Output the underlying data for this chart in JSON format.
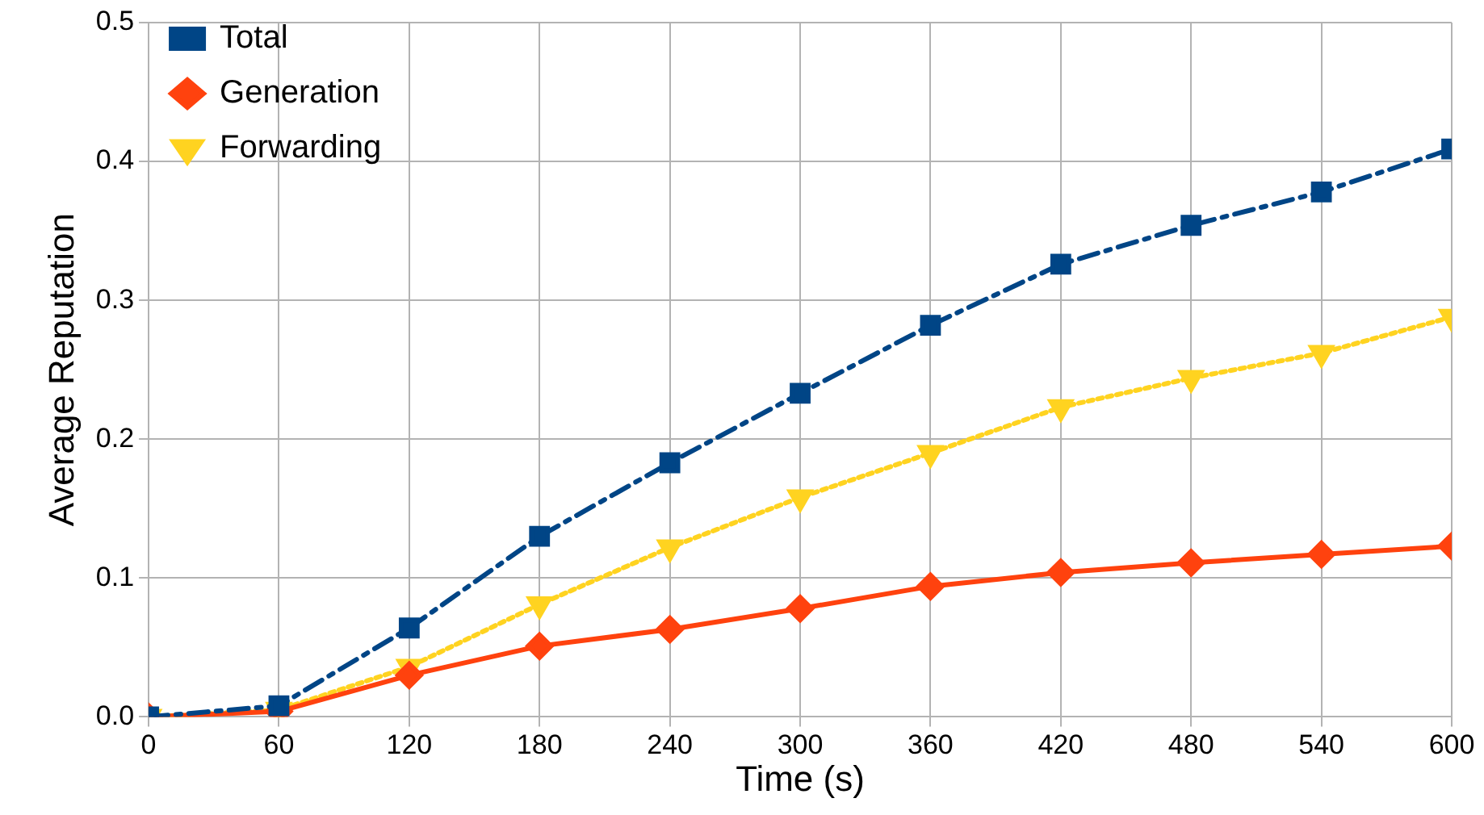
{
  "chart_data": {
    "type": "line",
    "xlabel": "Time (s)",
    "ylabel": "Average Reputation",
    "x": [
      0,
      60,
      120,
      180,
      240,
      300,
      360,
      420,
      480,
      540,
      600
    ],
    "series": [
      {
        "name": "Total",
        "color": "#004586",
        "marker": "square",
        "line_style": "dashed",
        "values": [
          0,
          0.008,
          0.064,
          0.13,
          0.183,
          0.233,
          0.282,
          0.326,
          0.354,
          0.378,
          0.409
        ]
      },
      {
        "name": "Generation",
        "color": "#ff420e",
        "marker": "diamond",
        "line_style": "solid",
        "values": [
          0,
          0.004,
          0.03,
          0.051,
          0.063,
          0.078,
          0.094,
          0.104,
          0.111,
          0.117,
          0.123
        ]
      },
      {
        "name": "Forwarding",
        "color": "#ffd320",
        "marker": "triangle",
        "line_style": "dotted",
        "values": [
          0,
          0.005,
          0.036,
          0.081,
          0.122,
          0.158,
          0.19,
          0.223,
          0.244,
          0.262,
          0.288
        ]
      }
    ],
    "xlim": [
      0,
      600
    ],
    "xticks": [
      0,
      60,
      120,
      180,
      240,
      300,
      360,
      420,
      480,
      540,
      600
    ],
    "ylim": [
      0,
      0.5
    ],
    "yticks": [
      {
        "value": 0,
        "label": "0.0"
      },
      {
        "value": 0.1,
        "label": "0.1"
      },
      {
        "value": 0.2,
        "label": "0.2"
      },
      {
        "value": 0.3,
        "label": "0.3"
      },
      {
        "value": 0.4,
        "label": "0.4"
      },
      {
        "value": 0.5,
        "label": "0.5"
      }
    ],
    "grid": true,
    "legend": "top left"
  }
}
